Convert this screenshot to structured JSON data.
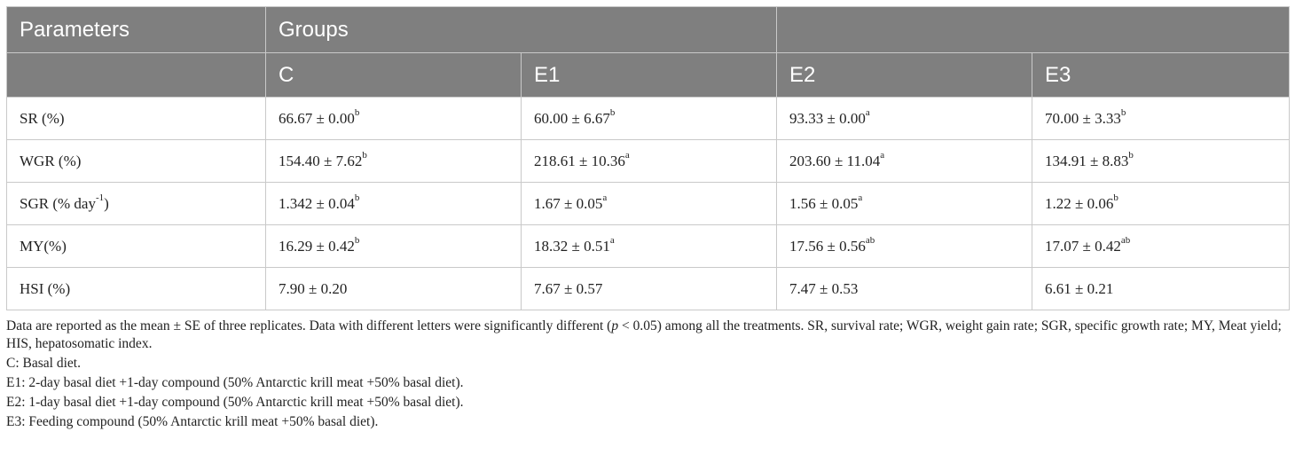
{
  "header": {
    "parameters": "Parameters",
    "groups": "Groups",
    "cols": [
      "C",
      "E1",
      "E2",
      "E3"
    ]
  },
  "rows": [
    {
      "param": "SR (%)",
      "cells": [
        {
          "value": "66.67 ± 0.00",
          "sup": "b"
        },
        {
          "value": "60.00 ± 6.67",
          "sup": "b"
        },
        {
          "value": "93.33 ± 0.00",
          "sup": "a"
        },
        {
          "value": "70.00 ± 3.33",
          "sup": "b"
        }
      ]
    },
    {
      "param": "WGR (%)",
      "cells": [
        {
          "value": "154.40 ± 7.62",
          "sup": "b"
        },
        {
          "value": "218.61 ± 10.36",
          "sup": "a"
        },
        {
          "value": "203.60 ± 11.04",
          "sup": "a"
        },
        {
          "value": "134.91 ± 8.83",
          "sup": "b"
        }
      ]
    },
    {
      "param": "SGR (% day",
      "param_sup": "-1",
      "param_after": ")",
      "cells": [
        {
          "value": "1.342 ± 0.04",
          "sup": "b"
        },
        {
          "value": "1.67 ± 0.05",
          "sup": "a"
        },
        {
          "value": "1.56 ± 0.05",
          "sup": "a"
        },
        {
          "value": "1.22 ± 0.06",
          "sup": "b"
        }
      ]
    },
    {
      "param": "MY(%)",
      "cells": [
        {
          "value": "16.29 ± 0.42",
          "sup": "b"
        },
        {
          "value": "18.32 ± 0.51",
          "sup": "a"
        },
        {
          "value": "17.56 ± 0.56",
          "sup": "ab"
        },
        {
          "value": "17.07 ± 0.42",
          "sup": "ab"
        }
      ]
    },
    {
      "param": "HSI (%)",
      "cells": [
        {
          "value": "7.90 ± 0.20",
          "sup": ""
        },
        {
          "value": "7.67 ± 0.57",
          "sup": ""
        },
        {
          "value": "7.47 ± 0.53",
          "sup": ""
        },
        {
          "value": "6.61 ± 0.21",
          "sup": ""
        }
      ]
    }
  ],
  "notes": {
    "line1_a": "Data are reported as the mean ± SE of three replicates. Data with different letters were significantly different (",
    "line1_p": "p",
    "line1_b": " < 0.05) among all the treatments. SR, survival rate; WGR, weight gain rate; SGR, specific growth rate; MY, Meat yield; HIS, hepatosomatic index.",
    "c": "C: Basal diet.",
    "e1": "E1: 2-day basal diet +1-day compound (50% Antarctic krill meat +50% basal diet).",
    "e2": "E2: 1-day basal diet +1-day compound (50% Antarctic krill meat +50% basal diet).",
    "e3": "E3: Feeding compound (50% Antarctic krill meat +50% basal diet)."
  }
}
